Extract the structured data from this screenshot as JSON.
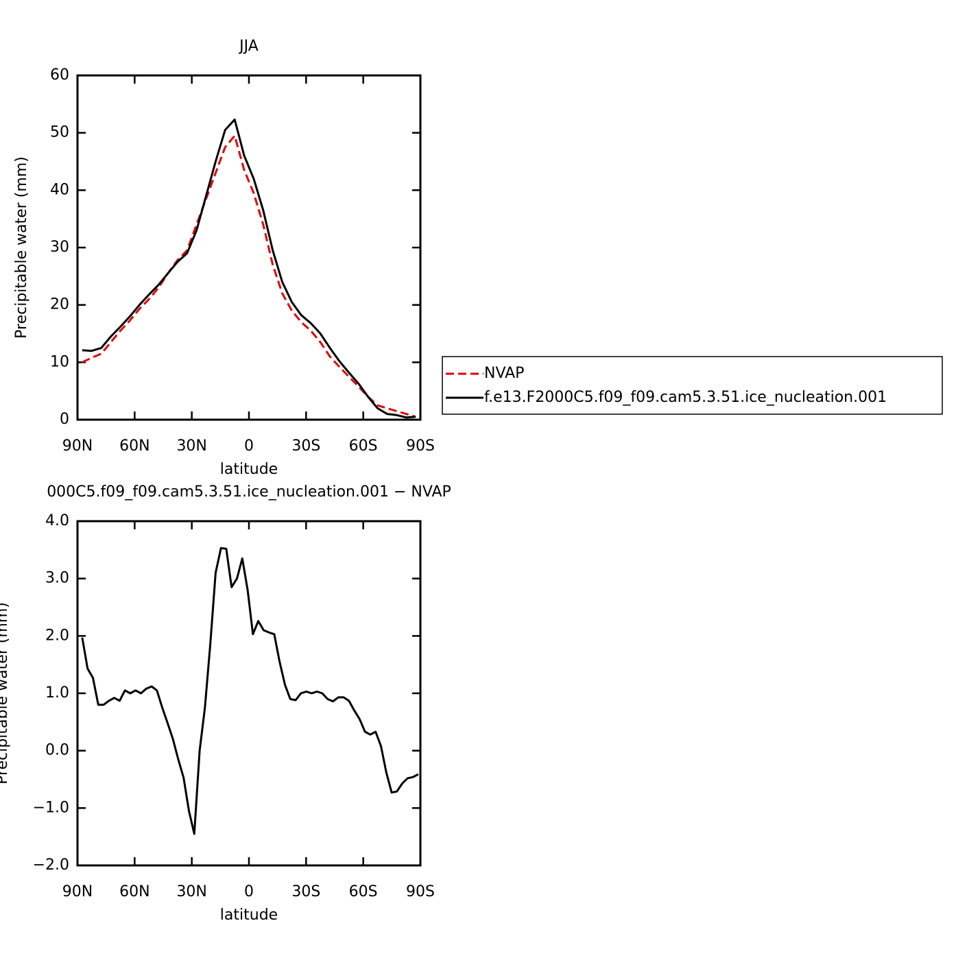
{
  "chart_data": [
    {
      "type": "line",
      "title": "JJA",
      "x_label": "latitude",
      "y_label": "Precipitable water (mm)",
      "x": [
        87.5,
        82.5,
        77.5,
        72.5,
        67.5,
        62.5,
        57.5,
        52.5,
        47.5,
        42.5,
        37.5,
        32.5,
        27.5,
        22.5,
        17.5,
        12.5,
        7.5,
        2.5,
        -2.5,
        -7.5,
        -12.5,
        -17.5,
        -22.5,
        -27.5,
        -32.5,
        -37.5,
        -42.5,
        -47.5,
        -52.5,
        -57.5,
        -62.5,
        -67.5,
        -72.5,
        -77.5,
        -82.5,
        -87.5
      ],
      "series": [
        {
          "name": "NVAP",
          "color": "#e00000",
          "dash": true,
          "values": [
            10.0,
            10.8,
            11.5,
            13.5,
            15.5,
            17.3,
            19.3,
            21.0,
            23.0,
            25.5,
            27.8,
            29.5,
            34.0,
            38.5,
            43.0,
            47.5,
            49.5,
            43.5,
            39.5,
            34.0,
            27.0,
            22.0,
            19.0,
            17.0,
            15.5,
            13.5,
            11.0,
            9.2,
            7.5,
            5.8,
            4.0,
            2.5,
            2.0,
            1.5,
            1.0,
            0.5
          ]
        },
        {
          "name": "f.e13.F2000C5.f09_f09.cam5.3.51.ice_nucleation.001",
          "color": "#000000",
          "dash": false,
          "values": [
            12.1,
            12.0,
            12.5,
            14.5,
            16.2,
            18.0,
            20.0,
            21.8,
            23.5,
            25.5,
            27.5,
            29.0,
            33.0,
            39.0,
            45.0,
            50.5,
            52.3,
            46.0,
            42.0,
            36.5,
            29.5,
            24.0,
            20.5,
            18.2,
            16.8,
            15.0,
            12.5,
            10.2,
            8.2,
            6.3,
            4.0,
            2.0,
            1.0,
            0.8,
            0.4,
            0.5
          ]
        }
      ],
      "xlim": [
        90,
        -90
      ],
      "xticks": [
        {
          "value": 90,
          "label": "90N"
        },
        {
          "value": 60,
          "label": "60N"
        },
        {
          "value": 30,
          "label": "30N"
        },
        0,
        {
          "value": -30,
          "label": "30S"
        },
        {
          "value": -60,
          "label": "60S"
        },
        {
          "value": -90,
          "label": "90S"
        }
      ],
      "ylim": [
        0,
        60
      ],
      "yticks": [
        0,
        10,
        20,
        30,
        40,
        50,
        60
      ],
      "legend": "right"
    },
    {
      "type": "line",
      "title": "000C5.f09_f09.cam5.3.51.ice_nucleation.001 − NVAP",
      "x_label": "latitude",
      "y_label": "Precipitable water (mm)",
      "x": [
        87.5,
        84.7,
        81.9,
        79.1,
        76.3,
        73.5,
        70.7,
        67.9,
        65.1,
        62.3,
        59.5,
        56.7,
        53.9,
        51.1,
        48.3,
        45.5,
        42.7,
        39.9,
        37.1,
        34.3,
        31.5,
        28.7,
        25.9,
        23.1,
        20.3,
        17.5,
        14.7,
        11.9,
        9.1,
        6.3,
        3.5,
        0.7,
        -2.1,
        -4.9,
        -7.7,
        -10.5,
        -13.3,
        -16.1,
        -18.9,
        -21.7,
        -24.5,
        -27.3,
        -30.1,
        -32.9,
        -35.7,
        -38.5,
        -41.3,
        -44.1,
        -46.9,
        -49.7,
        -52.5,
        -55.3,
        -58.1,
        -60.9,
        -63.7,
        -66.5,
        -69.3,
        -72.1,
        -74.9,
        -77.7,
        -80.5,
        -83.3,
        -86.1,
        -88.9
      ],
      "values": [
        1.97,
        1.43,
        1.27,
        0.8,
        0.8,
        0.87,
        0.92,
        0.87,
        1.05,
        1.0,
        1.05,
        1.0,
        1.08,
        1.12,
        1.05,
        0.75,
        0.48,
        0.2,
        -0.15,
        -0.47,
        -1.05,
        -1.45,
        0.0,
        0.75,
        1.85,
        3.1,
        3.53,
        3.52,
        2.85,
        3.0,
        3.35,
        2.8,
        2.03,
        2.26,
        2.1,
        2.06,
        2.03,
        1.55,
        1.15,
        0.9,
        0.88,
        1.0,
        1.03,
        1.0,
        1.03,
        1.0,
        0.9,
        0.86,
        0.93,
        0.93,
        0.87,
        0.7,
        0.55,
        0.33,
        0.28,
        0.33,
        0.08,
        -0.38,
        -0.73,
        -0.71,
        -0.57,
        -0.48,
        -0.46,
        -0.41
      ],
      "color": "#000000",
      "xlim": [
        90,
        -90
      ],
      "xticks": [
        {
          "value": 90,
          "label": "90N"
        },
        {
          "value": 60,
          "label": "60N"
        },
        {
          "value": 30,
          "label": "30N"
        },
        0,
        {
          "value": -30,
          "label": "30S"
        },
        {
          "value": -60,
          "label": "60S"
        },
        {
          "value": -90,
          "label": "90S"
        }
      ],
      "ylim": [
        -2,
        4
      ],
      "yticks": [
        {
          "value": -2,
          "label": "−2.0"
        },
        {
          "value": -1,
          "label": "−1.0"
        },
        {
          "value": 0,
          "label": "0.0"
        },
        {
          "value": 1,
          "label": "1.0"
        },
        {
          "value": 2,
          "label": "2.0"
        },
        {
          "value": 3,
          "label": "3.0"
        },
        {
          "value": 4,
          "label": "4.0"
        }
      ]
    }
  ]
}
